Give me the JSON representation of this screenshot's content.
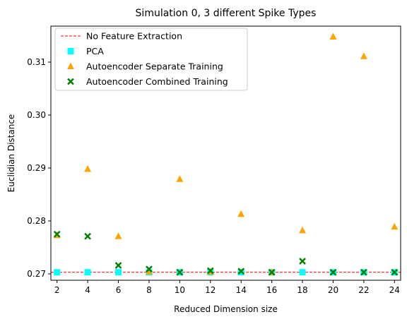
{
  "chart_data": {
    "type": "scatter",
    "title": "Simulation 0, 3 different Spike Types",
    "xlabel": "Reduced Dimension size",
    "ylabel": "Euclidian Distance",
    "xlim": [
      1.6,
      24.4
    ],
    "ylim": [
      0.2688,
      0.3168
    ],
    "xticks": [
      2,
      4,
      6,
      8,
      10,
      12,
      14,
      16,
      18,
      20,
      22,
      24
    ],
    "xtick_labels": [
      "2",
      "4",
      "6",
      "8",
      "10",
      "12",
      "14",
      "16",
      "18",
      "20",
      "22",
      "24"
    ],
    "yticks": [
      0.27,
      0.28,
      0.29,
      0.3,
      0.31
    ],
    "ytick_labels": [
      "0.27",
      "0.28",
      "0.29",
      "0.30",
      "0.31"
    ],
    "grid": false,
    "legend_position": "top-left",
    "baseline": {
      "name": "No Feature Extraction",
      "value": 0.2703,
      "color": "#ff0000",
      "style": "dashed"
    },
    "series": [
      {
        "name": "PCA",
        "marker": "square",
        "color": "#00ffff",
        "x": [
          2,
          4,
          6,
          8,
          10,
          12,
          14,
          16,
          18,
          20,
          22,
          24
        ],
        "y": [
          0.2703,
          0.2703,
          0.2703,
          0.2703,
          0.2703,
          0.2703,
          0.2703,
          0.2703,
          0.2703,
          0.2703,
          0.2703,
          0.2703
        ]
      },
      {
        "name": "Autoencoder Separate Training",
        "marker": "triangle",
        "color": "#ffa500",
        "x": [
          2,
          4,
          6,
          8,
          10,
          12,
          14,
          16,
          18,
          20,
          22,
          24
        ],
        "y": [
          0.2773,
          0.2898,
          0.2771,
          0.2704,
          0.2879,
          0.2704,
          0.2813,
          0.2703,
          0.2782,
          0.3148,
          0.3111,
          0.2789
        ]
      },
      {
        "name": "Autoencoder Combined Training",
        "marker": "x",
        "color": "#008000",
        "x": [
          2,
          4,
          6,
          8,
          10,
          12,
          14,
          16,
          18,
          20,
          22,
          24
        ],
        "y": [
          0.2775,
          0.2771,
          0.2716,
          0.2709,
          0.2703,
          0.2706,
          0.2705,
          0.2703,
          0.2724,
          0.2703,
          0.2703,
          0.2703
        ]
      }
    ]
  }
}
